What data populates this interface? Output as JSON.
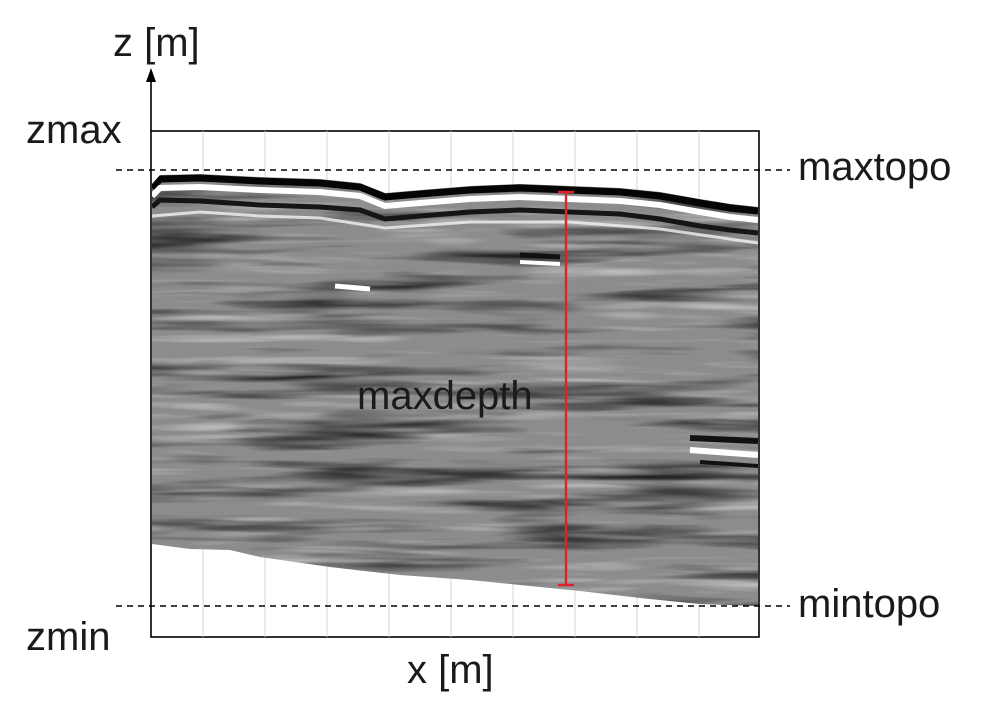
{
  "labels": {
    "y_axis": "z [m]",
    "x_axis": "x [m]",
    "zmax": "zmax",
    "zmin": "zmin",
    "maxtopo": "maxtopo",
    "mintopo": "mintopo",
    "maxdepth": "maxdepth"
  },
  "colors": {
    "frame": "#000000",
    "dashed_line": "#000000",
    "depth_marker": "#e0202a",
    "radargram_base": "#8c8c8c",
    "text": "#1a1a1a"
  }
}
